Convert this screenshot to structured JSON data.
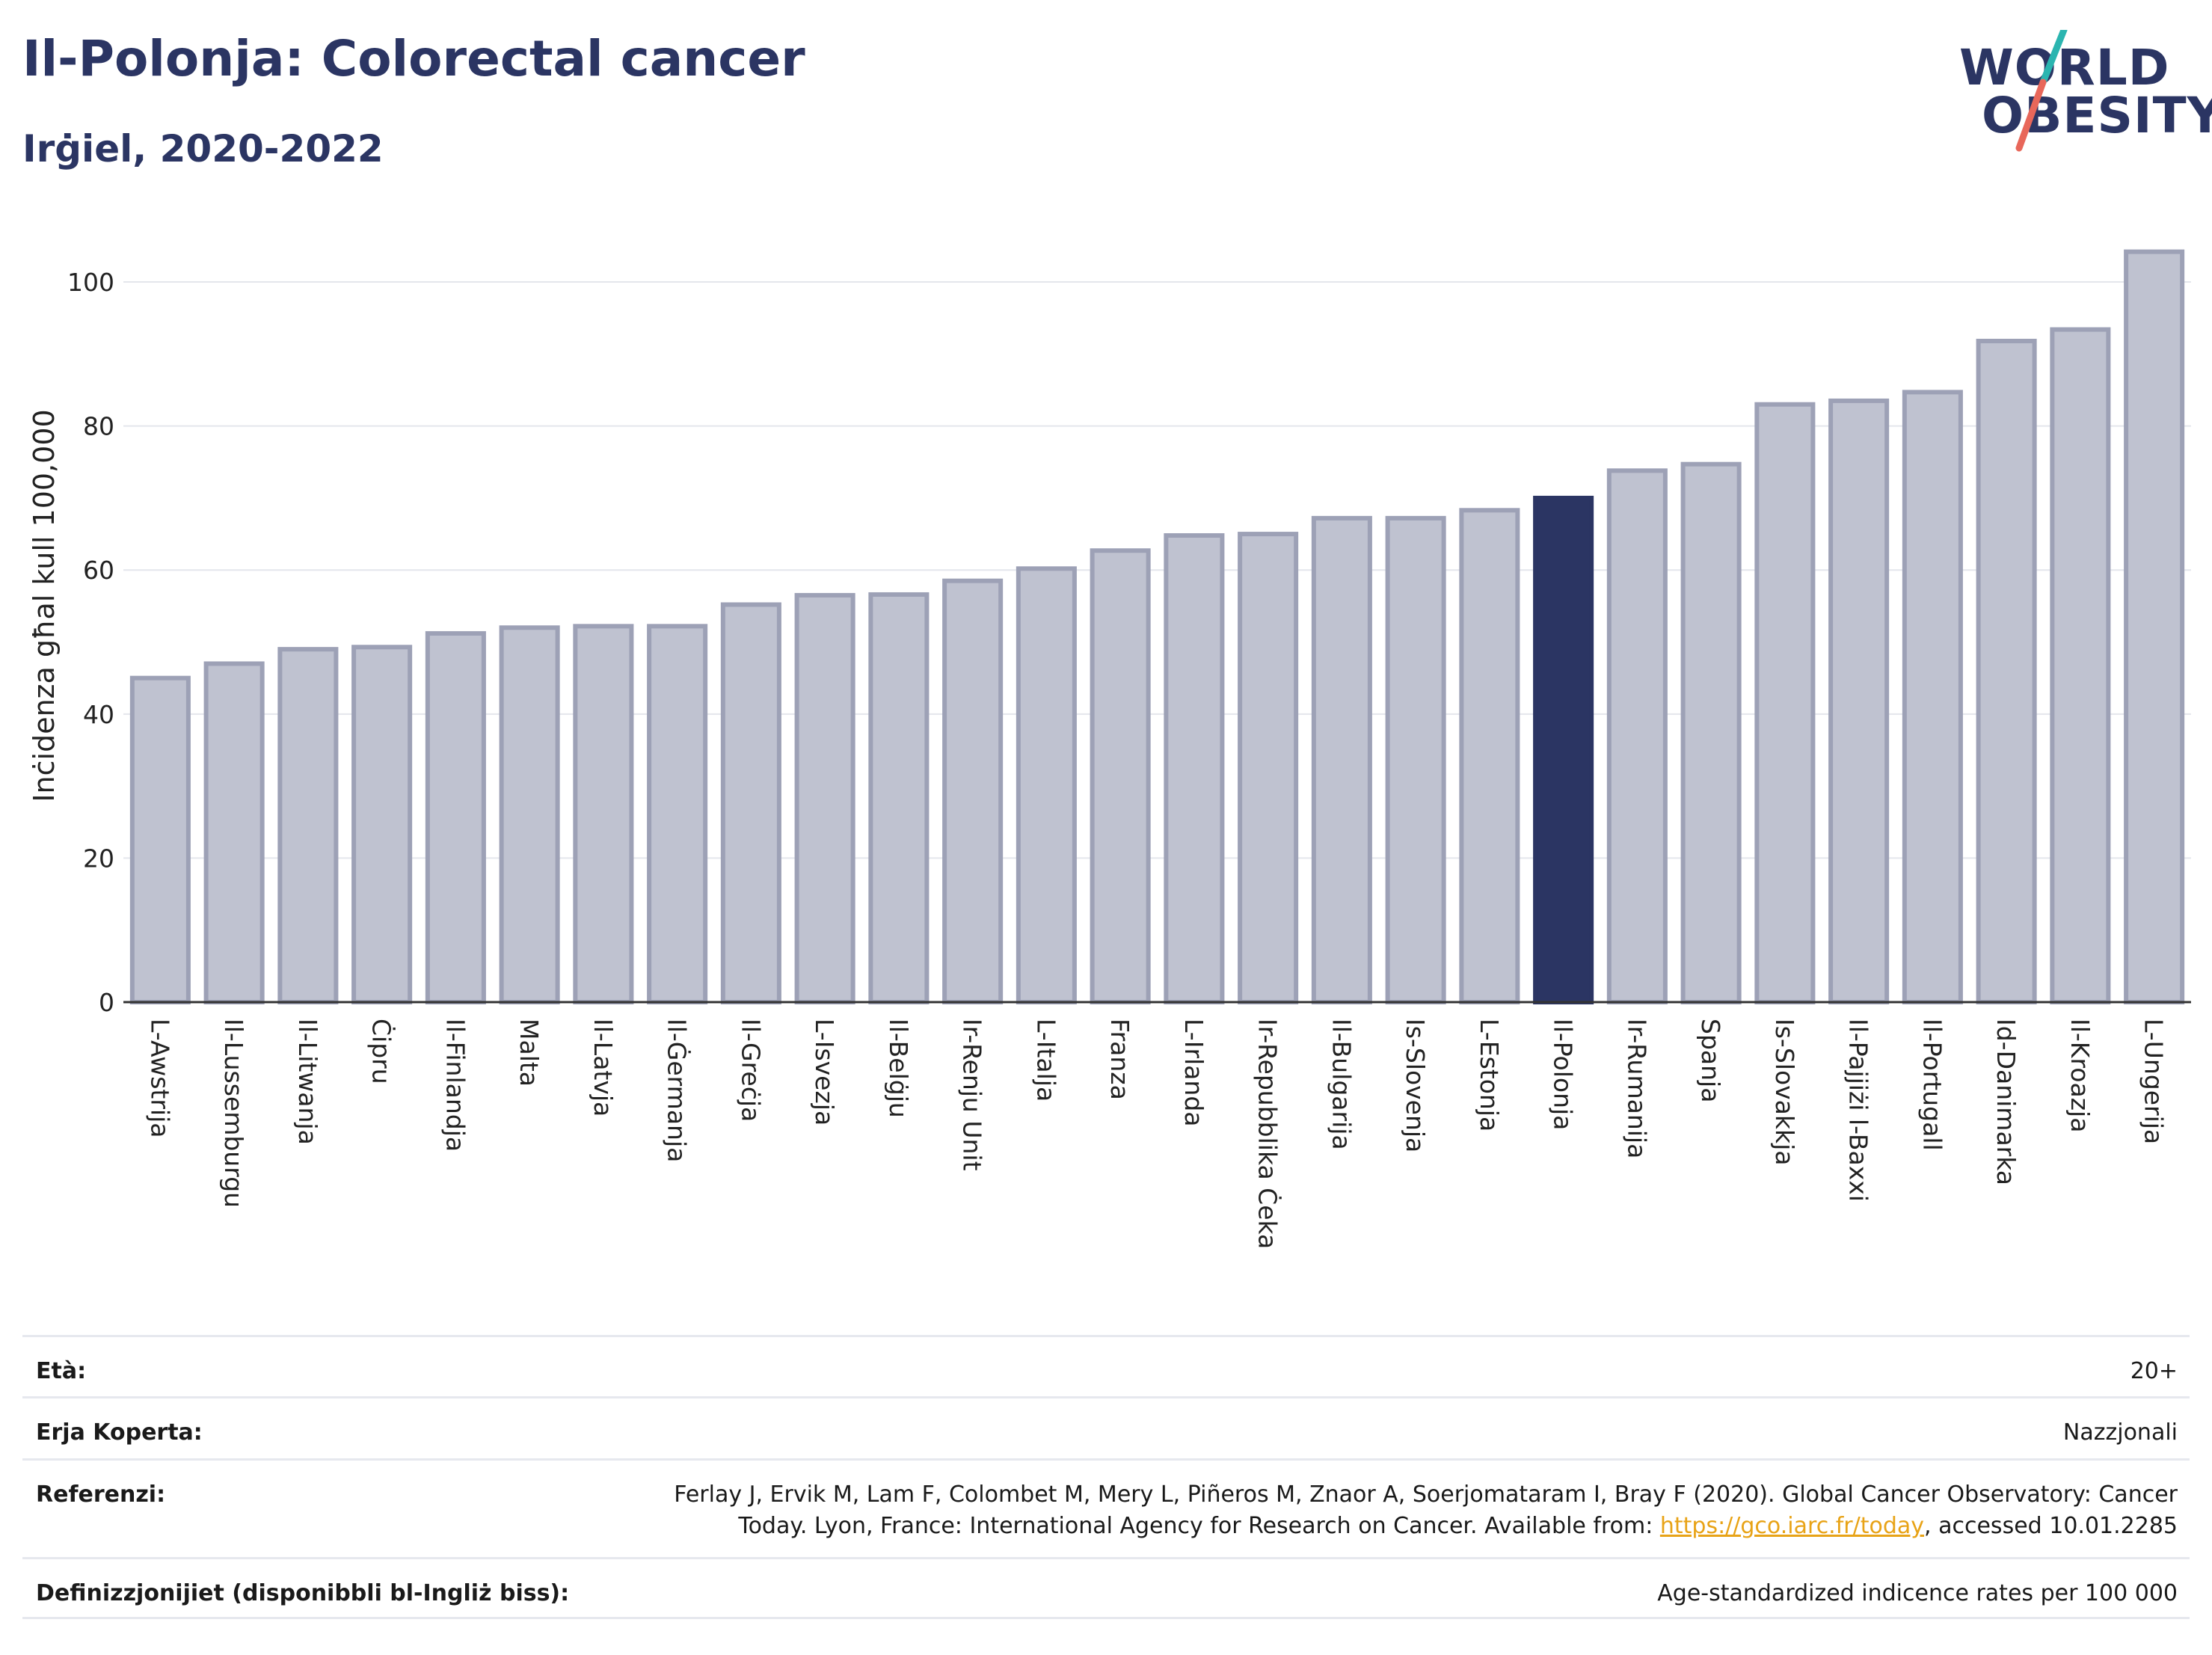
{
  "header": {
    "title": "Il-Polonja: Colorectal cancer",
    "subtitle": "Irġiel, 2020-2022"
  },
  "logo": {
    "line1": "WORLD",
    "line2": "OBESITY",
    "icon": "slash-stroke-icon",
    "colors": {
      "text": "#2b3563",
      "teal": "#2bb5b0",
      "coral": "#e8675a"
    }
  },
  "chart_data": {
    "type": "bar",
    "ylabel": "Inċidenza għal kull 100,000",
    "ylim": [
      0,
      108
    ],
    "yticks": [
      0,
      20,
      40,
      60,
      80,
      100
    ],
    "grid": true,
    "highlight": "Il-Polonja",
    "colors": {
      "bar": "#bfc2d0",
      "bar_edge": "#9da1b6",
      "highlight": "#2b3563"
    },
    "categories": [
      "L-Awstrija",
      "Il-Lussemburgu",
      "Il-Litwanja",
      "Ċipru",
      "Il-Finlandja",
      "Malta",
      "Il-Latvja",
      "Il-Ġermanja",
      "Il-Greċja",
      "L-Isvezja",
      "Il-Belġju",
      "Ir-Renju Unit",
      "L-Italja",
      "Franza",
      "L-Irlanda",
      "Ir-Repubblika Ċeka",
      "Il-Bulgarija",
      "Is-Slovenja",
      "L-Estonja",
      "Il-Polonja",
      "Ir-Rumanija",
      "Spanja",
      "Is-Slovakkja",
      "Il-Pajjiżi l-Baxxi",
      "Il-Portugall",
      "Id-Danimarka",
      "Il-Kroazja",
      "L-Ungerija"
    ],
    "values": [
      45,
      47,
      49,
      49.3,
      51.2,
      52,
      52.2,
      52.2,
      55.2,
      56.5,
      56.6,
      58.5,
      60.2,
      62.7,
      64.8,
      65,
      67.2,
      67.2,
      68.3,
      70,
      73.8,
      74.7,
      83,
      83.5,
      84.7,
      91.8,
      93.4,
      104.2
    ]
  },
  "meta": {
    "age_label": "Età:",
    "age_value": "20+",
    "area_label": "Erja Koperta:",
    "area_value": "Nazzjonali",
    "ref_label": "Referenzi:",
    "ref_line1": "Ferlay J, Ervik M, Lam F, Colombet M, Mery L, Piñeros M, Znaor A, Soerjomataram I, Bray F (2020). Global Cancer Observatory: Cancer",
    "ref_line2_pre": "Today. Lyon, France: International Agency for Research on Cancer. Available from: ",
    "ref_link": "https://gco.iarc.fr/today",
    "ref_line2_post": ", accessed 10.01.2285",
    "def_label": "Definizzjonijiet (disponibbli bl-Ingliż biss):",
    "def_value": "Age-standardized indicence rates per 100 000"
  }
}
